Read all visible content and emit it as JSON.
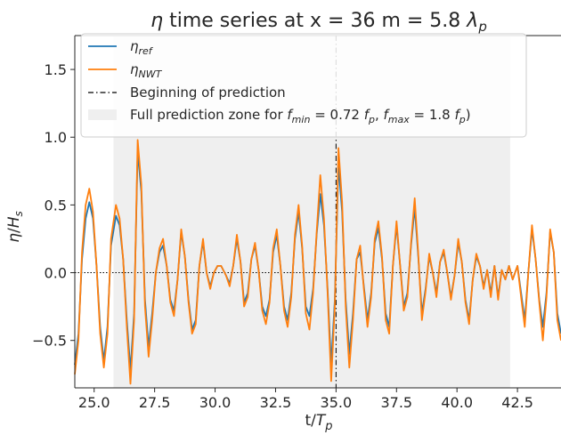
{
  "chart_data": {
    "type": "line",
    "title": "η time series at x = 36 m = 5.8 λp",
    "title_parts": {
      "eta": "η",
      "main": " time series at x = 36 m = 5.8 ",
      "lambda": "λ",
      "lambda_sub": "p"
    },
    "xlabel": "t/Tp",
    "xlabel_parts": {
      "main": "t/",
      "T": "T",
      "sub": "p"
    },
    "ylabel": "η/Hs",
    "ylabel_parts": {
      "eta": "η",
      "slash": "/",
      "H": "H",
      "sub": "s"
    },
    "xlim": [
      24.2,
      44.3
    ],
    "ylim": [
      -0.85,
      1.75
    ],
    "xticks": [
      25.0,
      27.5,
      30.0,
      32.5,
      35.0,
      37.5,
      40.0,
      42.5
    ],
    "xtick_labels": [
      "25.0",
      "27.5",
      "30.0",
      "32.5",
      "35.0",
      "37.5",
      "40.0",
      "42.5"
    ],
    "yticks": [
      -0.5,
      0.0,
      0.5,
      1.0,
      1.5
    ],
    "ytick_labels": [
      "−0.5",
      "0.0",
      "0.5",
      "1.0",
      "1.5"
    ],
    "grid": false,
    "legend_position": "top-left",
    "legend": [
      {
        "id": "ref",
        "parts": {
          "main": "η",
          "sub": "ref"
        }
      },
      {
        "id": "nwt",
        "parts": {
          "main": "η",
          "sub": "NWT"
        }
      },
      {
        "id": "begin",
        "text": "Beginning of prediction"
      },
      {
        "id": "zone",
        "parts": {
          "pre": "Full prediction zone for ",
          "f1": "f",
          "f1sub": "min",
          "mid1": " = 0.72 ",
          "f2": "f",
          "f2sub": "p",
          "mid2": ", ",
          "f3": "f",
          "f3sub": "max",
          "mid3": " = 1.8 ",
          "f4": "f",
          "f4sub": "p",
          "post": ")"
        }
      }
    ],
    "prediction_start": 35.0,
    "prediction_zone": [
      25.8,
      42.2
    ],
    "zero_line": 0.0,
    "colors": {
      "ref": "#1f77b4",
      "nwt": "#ff7f0e",
      "zone": "#efefef",
      "vline": "#000000",
      "zero": "#000000",
      "axis": "#262626"
    },
    "series": [
      {
        "id": "ref",
        "name": "η_ref",
        "points": [
          [
            24.2,
            -0.68
          ],
          [
            24.35,
            -0.45
          ],
          [
            24.5,
            0.1
          ],
          [
            24.65,
            0.4
          ],
          [
            24.8,
            0.52
          ],
          [
            24.95,
            0.4
          ],
          [
            25.1,
            0.05
          ],
          [
            25.25,
            -0.4
          ],
          [
            25.4,
            -0.65
          ],
          [
            25.55,
            -0.4
          ],
          [
            25.7,
            0.2
          ],
          [
            25.9,
            0.42
          ],
          [
            26.05,
            0.35
          ],
          [
            26.2,
            0.1
          ],
          [
            26.35,
            -0.35
          ],
          [
            26.5,
            -0.72
          ],
          [
            26.65,
            -0.3
          ],
          [
            26.8,
            0.9
          ],
          [
            26.95,
            0.6
          ],
          [
            27.1,
            -0.2
          ],
          [
            27.25,
            -0.55
          ],
          [
            27.4,
            -0.3
          ],
          [
            27.55,
            0.0
          ],
          [
            27.7,
            0.15
          ],
          [
            27.85,
            0.2
          ],
          [
            28.0,
            0.05
          ],
          [
            28.15,
            -0.2
          ],
          [
            28.3,
            -0.28
          ],
          [
            28.45,
            -0.05
          ],
          [
            28.6,
            0.3
          ],
          [
            28.75,
            0.12
          ],
          [
            28.9,
            -0.2
          ],
          [
            29.05,
            -0.42
          ],
          [
            29.2,
            -0.35
          ],
          [
            29.35,
            0.05
          ],
          [
            29.5,
            0.23
          ],
          [
            29.65,
            0.0
          ],
          [
            29.8,
            -0.1
          ],
          [
            29.95,
            0.0
          ],
          [
            30.1,
            0.05
          ],
          [
            30.25,
            0.05
          ],
          [
            30.45,
            -0.02
          ],
          [
            30.6,
            -0.08
          ],
          [
            30.75,
            0.05
          ],
          [
            30.9,
            0.25
          ],
          [
            31.05,
            0.08
          ],
          [
            31.2,
            -0.22
          ],
          [
            31.35,
            -0.15
          ],
          [
            31.5,
            0.1
          ],
          [
            31.65,
            0.2
          ],
          [
            31.8,
            0.02
          ],
          [
            31.95,
            -0.25
          ],
          [
            32.1,
            -0.32
          ],
          [
            32.25,
            -0.2
          ],
          [
            32.4,
            0.15
          ],
          [
            32.55,
            0.28
          ],
          [
            32.7,
            0.05
          ],
          [
            32.85,
            -0.25
          ],
          [
            33.0,
            -0.35
          ],
          [
            33.15,
            -0.15
          ],
          [
            33.3,
            0.25
          ],
          [
            33.45,
            0.45
          ],
          [
            33.6,
            0.18
          ],
          [
            33.75,
            -0.25
          ],
          [
            33.9,
            -0.32
          ],
          [
            34.05,
            -0.12
          ],
          [
            34.2,
            0.28
          ],
          [
            34.35,
            0.58
          ],
          [
            34.5,
            0.35
          ],
          [
            34.65,
            -0.12
          ],
          [
            34.8,
            -0.68
          ],
          [
            34.95,
            -0.2
          ],
          [
            35.1,
            0.8
          ],
          [
            35.25,
            0.45
          ],
          [
            35.4,
            -0.2
          ],
          [
            35.55,
            -0.6
          ],
          [
            35.7,
            -0.3
          ],
          [
            35.85,
            0.1
          ],
          [
            36.0,
            0.15
          ],
          [
            36.15,
            -0.1
          ],
          [
            36.3,
            -0.35
          ],
          [
            36.45,
            -0.15
          ],
          [
            36.6,
            0.22
          ],
          [
            36.75,
            0.33
          ],
          [
            36.9,
            0.1
          ],
          [
            37.05,
            -0.3
          ],
          [
            37.2,
            -0.4
          ],
          [
            37.35,
            0.05
          ],
          [
            37.5,
            0.35
          ],
          [
            37.65,
            0.05
          ],
          [
            37.8,
            -0.25
          ],
          [
            37.95,
            -0.15
          ],
          [
            38.1,
            0.2
          ],
          [
            38.25,
            0.48
          ],
          [
            38.4,
            0.12
          ],
          [
            38.55,
            -0.3
          ],
          [
            38.7,
            -0.12
          ],
          [
            38.85,
            0.12
          ],
          [
            39.0,
            0.0
          ],
          [
            39.15,
            -0.15
          ],
          [
            39.3,
            0.08
          ],
          [
            39.45,
            0.15
          ],
          [
            39.6,
            0.0
          ],
          [
            39.75,
            -0.18
          ],
          [
            39.9,
            -0.02
          ],
          [
            40.05,
            0.22
          ],
          [
            40.2,
            0.08
          ],
          [
            40.35,
            -0.2
          ],
          [
            40.5,
            -0.35
          ],
          [
            40.65,
            -0.05
          ],
          [
            40.8,
            0.12
          ],
          [
            40.95,
            0.05
          ],
          [
            41.1,
            -0.1
          ],
          [
            41.25,
            0.02
          ],
          [
            41.4,
            -0.15
          ],
          [
            41.55,
            0.05
          ],
          [
            41.7,
            -0.18
          ],
          [
            41.85,
            0.02
          ],
          [
            42.0,
            -0.05
          ],
          [
            42.15,
            0.05
          ],
          [
            42.3,
            -0.05
          ],
          [
            42.5,
            0.05
          ],
          [
            42.65,
            -0.15
          ],
          [
            42.8,
            -0.35
          ],
          [
            42.95,
            0.0
          ],
          [
            43.1,
            0.32
          ],
          [
            43.25,
            0.1
          ],
          [
            43.4,
            -0.2
          ],
          [
            43.55,
            -0.4
          ],
          [
            43.7,
            -0.15
          ],
          [
            43.85,
            0.3
          ],
          [
            44.0,
            0.15
          ],
          [
            44.15,
            -0.3
          ],
          [
            44.3,
            -0.45
          ]
        ]
      },
      {
        "id": "nwt",
        "name": "η_NWT",
        "points": [
          [
            24.2,
            -0.75
          ],
          [
            24.35,
            -0.5
          ],
          [
            24.5,
            0.15
          ],
          [
            24.65,
            0.5
          ],
          [
            24.8,
            0.62
          ],
          [
            24.95,
            0.45
          ],
          [
            25.1,
            0.05
          ],
          [
            25.25,
            -0.45
          ],
          [
            25.4,
            -0.7
          ],
          [
            25.55,
            -0.45
          ],
          [
            25.7,
            0.25
          ],
          [
            25.9,
            0.5
          ],
          [
            26.05,
            0.4
          ],
          [
            26.2,
            0.1
          ],
          [
            26.35,
            -0.4
          ],
          [
            26.5,
            -0.82
          ],
          [
            26.65,
            -0.35
          ],
          [
            26.8,
            0.98
          ],
          [
            26.95,
            0.65
          ],
          [
            27.1,
            -0.25
          ],
          [
            27.25,
            -0.62
          ],
          [
            27.4,
            -0.35
          ],
          [
            27.55,
            0.0
          ],
          [
            27.7,
            0.18
          ],
          [
            27.85,
            0.25
          ],
          [
            28.0,
            0.05
          ],
          [
            28.15,
            -0.22
          ],
          [
            28.3,
            -0.32
          ],
          [
            28.45,
            -0.05
          ],
          [
            28.6,
            0.32
          ],
          [
            28.75,
            0.12
          ],
          [
            28.9,
            -0.22
          ],
          [
            29.05,
            -0.45
          ],
          [
            29.2,
            -0.38
          ],
          [
            29.35,
            0.05
          ],
          [
            29.5,
            0.25
          ],
          [
            29.65,
            0.0
          ],
          [
            29.8,
            -0.12
          ],
          [
            29.95,
            0.0
          ],
          [
            30.1,
            0.05
          ],
          [
            30.25,
            0.05
          ],
          [
            30.45,
            -0.02
          ],
          [
            30.6,
            -0.1
          ],
          [
            30.75,
            0.05
          ],
          [
            30.9,
            0.28
          ],
          [
            31.05,
            0.08
          ],
          [
            31.2,
            -0.25
          ],
          [
            31.35,
            -0.18
          ],
          [
            31.5,
            0.1
          ],
          [
            31.65,
            0.22
          ],
          [
            31.8,
            0.02
          ],
          [
            31.95,
            -0.28
          ],
          [
            32.1,
            -0.38
          ],
          [
            32.25,
            -0.22
          ],
          [
            32.4,
            0.18
          ],
          [
            32.55,
            0.32
          ],
          [
            32.7,
            0.05
          ],
          [
            32.85,
            -0.28
          ],
          [
            33.0,
            -0.4
          ],
          [
            33.15,
            -0.18
          ],
          [
            33.3,
            0.28
          ],
          [
            33.45,
            0.5
          ],
          [
            33.6,
            0.2
          ],
          [
            33.75,
            -0.3
          ],
          [
            33.9,
            -0.42
          ],
          [
            34.05,
            -0.15
          ],
          [
            34.2,
            0.3
          ],
          [
            34.35,
            0.72
          ],
          [
            34.5,
            0.4
          ],
          [
            34.65,
            -0.15
          ],
          [
            34.8,
            -0.8
          ],
          [
            34.95,
            -0.25
          ],
          [
            35.1,
            0.92
          ],
          [
            35.25,
            0.52
          ],
          [
            35.4,
            -0.25
          ],
          [
            35.55,
            -0.7
          ],
          [
            35.7,
            -0.35
          ],
          [
            35.85,
            0.1
          ],
          [
            36.0,
            0.2
          ],
          [
            36.15,
            -0.12
          ],
          [
            36.3,
            -0.4
          ],
          [
            36.45,
            -0.18
          ],
          [
            36.6,
            0.25
          ],
          [
            36.75,
            0.38
          ],
          [
            36.9,
            0.12
          ],
          [
            37.05,
            -0.35
          ],
          [
            37.2,
            -0.45
          ],
          [
            37.35,
            0.05
          ],
          [
            37.5,
            0.38
          ],
          [
            37.65,
            0.05
          ],
          [
            37.8,
            -0.28
          ],
          [
            37.95,
            -0.18
          ],
          [
            38.1,
            0.22
          ],
          [
            38.25,
            0.55
          ],
          [
            38.4,
            0.14
          ],
          [
            38.55,
            -0.35
          ],
          [
            38.7,
            -0.14
          ],
          [
            38.85,
            0.14
          ],
          [
            39.0,
            0.0
          ],
          [
            39.15,
            -0.18
          ],
          [
            39.3,
            0.08
          ],
          [
            39.45,
            0.17
          ],
          [
            39.6,
            0.0
          ],
          [
            39.75,
            -0.2
          ],
          [
            39.9,
            -0.02
          ],
          [
            40.05,
            0.25
          ],
          [
            40.2,
            0.08
          ],
          [
            40.35,
            -0.22
          ],
          [
            40.5,
            -0.38
          ],
          [
            40.65,
            -0.05
          ],
          [
            40.8,
            0.14
          ],
          [
            40.95,
            0.05
          ],
          [
            41.1,
            -0.12
          ],
          [
            41.25,
            0.02
          ],
          [
            41.4,
            -0.18
          ],
          [
            41.55,
            0.05
          ],
          [
            41.7,
            -0.2
          ],
          [
            41.85,
            0.02
          ],
          [
            42.0,
            -0.05
          ],
          [
            42.15,
            0.05
          ],
          [
            42.3,
            -0.05
          ],
          [
            42.5,
            0.05
          ],
          [
            42.65,
            -0.18
          ],
          [
            42.8,
            -0.4
          ],
          [
            42.95,
            0.0
          ],
          [
            43.1,
            0.35
          ],
          [
            43.25,
            0.1
          ],
          [
            43.4,
            -0.22
          ],
          [
            43.55,
            -0.5
          ],
          [
            43.7,
            -0.18
          ],
          [
            43.85,
            0.32
          ],
          [
            44.0,
            0.15
          ],
          [
            44.15,
            -0.35
          ],
          [
            44.3,
            -0.5
          ]
        ]
      }
    ]
  }
}
